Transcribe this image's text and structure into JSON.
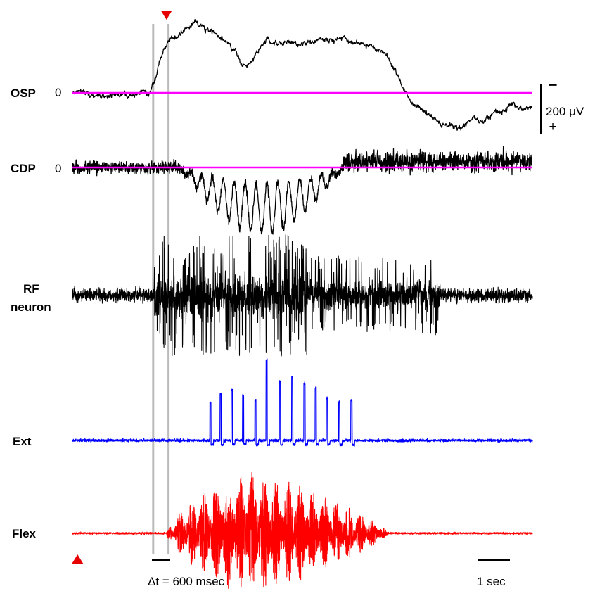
{
  "chart_data": {
    "type": "line",
    "title": "",
    "xlabel": "",
    "ylabel": "",
    "time_range_sec": [
      -0.3,
      4.2
    ],
    "grid": false,
    "legend": "none",
    "stimulus_markers": [
      {
        "kind": "start",
        "shape": "up-triangle",
        "color": "#e60000",
        "t_sec": -0.25
      },
      {
        "kind": "end",
        "shape": "down-triangle",
        "color": "#e60000",
        "t_sec": 0.62
      }
    ],
    "window_lines": {
      "t_start_sec": 0.49,
      "t_end_sec": 0.64,
      "color": "#bbbbbb"
    },
    "delta_t_label": "Δt = 600 msec",
    "scale_bar": {
      "time_label": "1 sec",
      "voltage_label": "200 μV",
      "sign_top": "−",
      "sign_bottom": "+"
    },
    "baseline_color": "#ff00ff",
    "series": [
      {
        "name": "OSP",
        "sub_name": "",
        "color": "#000000",
        "zero_label": "0",
        "has_zero_line": true
      },
      {
        "name": "CDP",
        "sub_name": "",
        "color": "#000000",
        "zero_label": "0",
        "has_zero_line": true
      },
      {
        "name": "RF",
        "sub_name": "neuron",
        "color": "#000000",
        "zero_label": "",
        "has_zero_line": false
      },
      {
        "name": "Ext",
        "sub_name": "",
        "color": "#0000ff",
        "zero_label": "",
        "has_zero_line": false
      },
      {
        "name": "Flex",
        "sub_name": "",
        "color": "#ff0000",
        "zero_label": "",
        "has_zero_line": false
      }
    ],
    "osp_envelope": {
      "t": [
        -0.3,
        0.0,
        0.45,
        0.6,
        0.9,
        1.2,
        1.4,
        1.6,
        1.9,
        2.3,
        2.6,
        2.8,
        3.0,
        3.3,
        3.5,
        3.7,
        4.0,
        4.2
      ],
      "uV": [
        0,
        -5,
        -5,
        110,
        170,
        120,
        60,
        125,
        115,
        130,
        115,
        80,
        -15,
        -75,
        -80,
        -65,
        -30,
        -30
      ]
    },
    "cdp_oscillation": {
      "t_start_sec": 0.75,
      "t_end_sec": 2.35,
      "cycles": 15,
      "peak_uV": -170
    },
    "ext_bursts": {
      "t_sec": [
        1.05,
        1.15,
        1.26,
        1.37,
        1.49,
        1.6,
        1.73,
        1.85,
        1.97,
        2.08,
        2.19,
        2.31,
        2.43
      ],
      "amp_uV": [
        90,
        110,
        120,
        108,
        95,
        190,
        140,
        150,
        135,
        125,
        100,
        90,
        95
      ]
    },
    "flex_envelope": {
      "t": [
        0.62,
        0.8,
        1.1,
        1.4,
        1.6,
        1.9,
        2.2,
        2.5,
        2.7,
        2.8
      ],
      "amp": [
        0.05,
        0.45,
        0.8,
        1.0,
        0.95,
        0.8,
        0.6,
        0.35,
        0.15,
        0.0
      ]
    }
  }
}
